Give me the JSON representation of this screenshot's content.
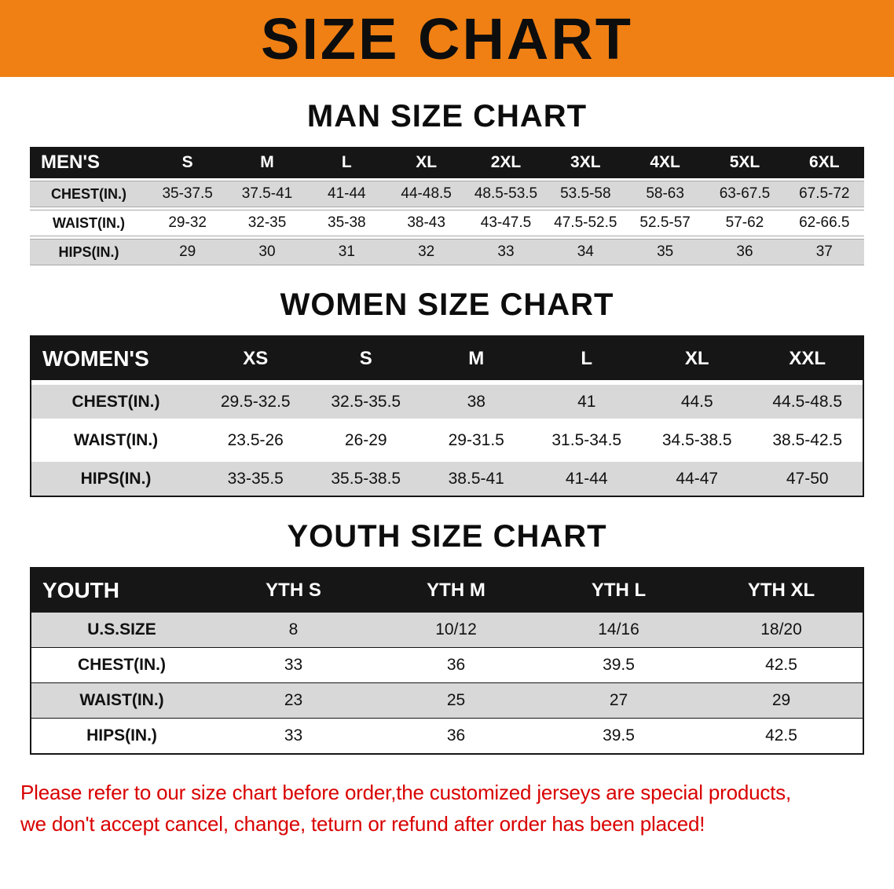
{
  "banner": {
    "title": "SIZE CHART"
  },
  "colors": {
    "banner_bg": "#F08014",
    "table_header_bg": "#161616",
    "row_alt_bg": "#D8D8D8",
    "footer_text": "#D90000"
  },
  "sections": [
    {
      "title": "MAN SIZE CHART",
      "table": {
        "label_header": "MEN'S",
        "columns": [
          "S",
          "M",
          "L",
          "XL",
          "2XL",
          "3XL",
          "4XL",
          "5XL",
          "6XL"
        ],
        "rows": [
          {
            "label": "CHEST(IN.)",
            "values": [
              "35-37.5",
              "37.5-41",
              "41-44",
              "44-48.5",
              "48.5-53.5",
              "53.5-58",
              "58-63",
              "63-67.5",
              "67.5-72"
            ]
          },
          {
            "label": "WAIST(IN.)",
            "values": [
              "29-32",
              "32-35",
              "35-38",
              "38-43",
              "43-47.5",
              "47.5-52.5",
              "52.5-57",
              "57-62",
              "62-66.5"
            ]
          },
          {
            "label": "HIPS(IN.)",
            "values": [
              "29",
              "30",
              "31",
              "32",
              "33",
              "34",
              "35",
              "36",
              "37"
            ]
          }
        ]
      }
    },
    {
      "title": "WOMEN SIZE CHART",
      "table": {
        "label_header": "WOMEN'S",
        "columns": [
          "XS",
          "S",
          "M",
          "L",
          "XL",
          "XXL"
        ],
        "rows": [
          {
            "label": "CHEST(IN.)",
            "values": [
              "29.5-32.5",
              "32.5-35.5",
              "38",
              "41",
              "44.5",
              "44.5-48.5"
            ]
          },
          {
            "label": "WAIST(IN.)",
            "values": [
              "23.5-26",
              "26-29",
              "29-31.5",
              "31.5-34.5",
              "34.5-38.5",
              "38.5-42.5"
            ]
          },
          {
            "label": "HIPS(IN.)",
            "values": [
              "33-35.5",
              "35.5-38.5",
              "38.5-41",
              "41-44",
              "44-47",
              "47-50"
            ]
          }
        ]
      }
    },
    {
      "title": "YOUTH SIZE CHART",
      "table": {
        "label_header": "YOUTH",
        "columns": [
          "YTH S",
          "YTH M",
          "YTH L",
          "YTH XL"
        ],
        "rows": [
          {
            "label": "U.S.SIZE",
            "values": [
              "8",
              "10/12",
              "14/16",
              "18/20"
            ]
          },
          {
            "label": "CHEST(IN.)",
            "values": [
              "33",
              "36",
              "39.5",
              "42.5"
            ]
          },
          {
            "label": "WAIST(IN.)",
            "values": [
              "23",
              "25",
              "27",
              "29"
            ]
          },
          {
            "label": "HIPS(IN.)",
            "values": [
              "33",
              "36",
              "39.5",
              "42.5"
            ]
          }
        ]
      }
    }
  ],
  "footer": {
    "lines": [
      "Please refer to our size chart before order,the customized jerseys are special products,",
      "we don't accept cancel, change, teturn or refund after order has been placed!"
    ]
  }
}
